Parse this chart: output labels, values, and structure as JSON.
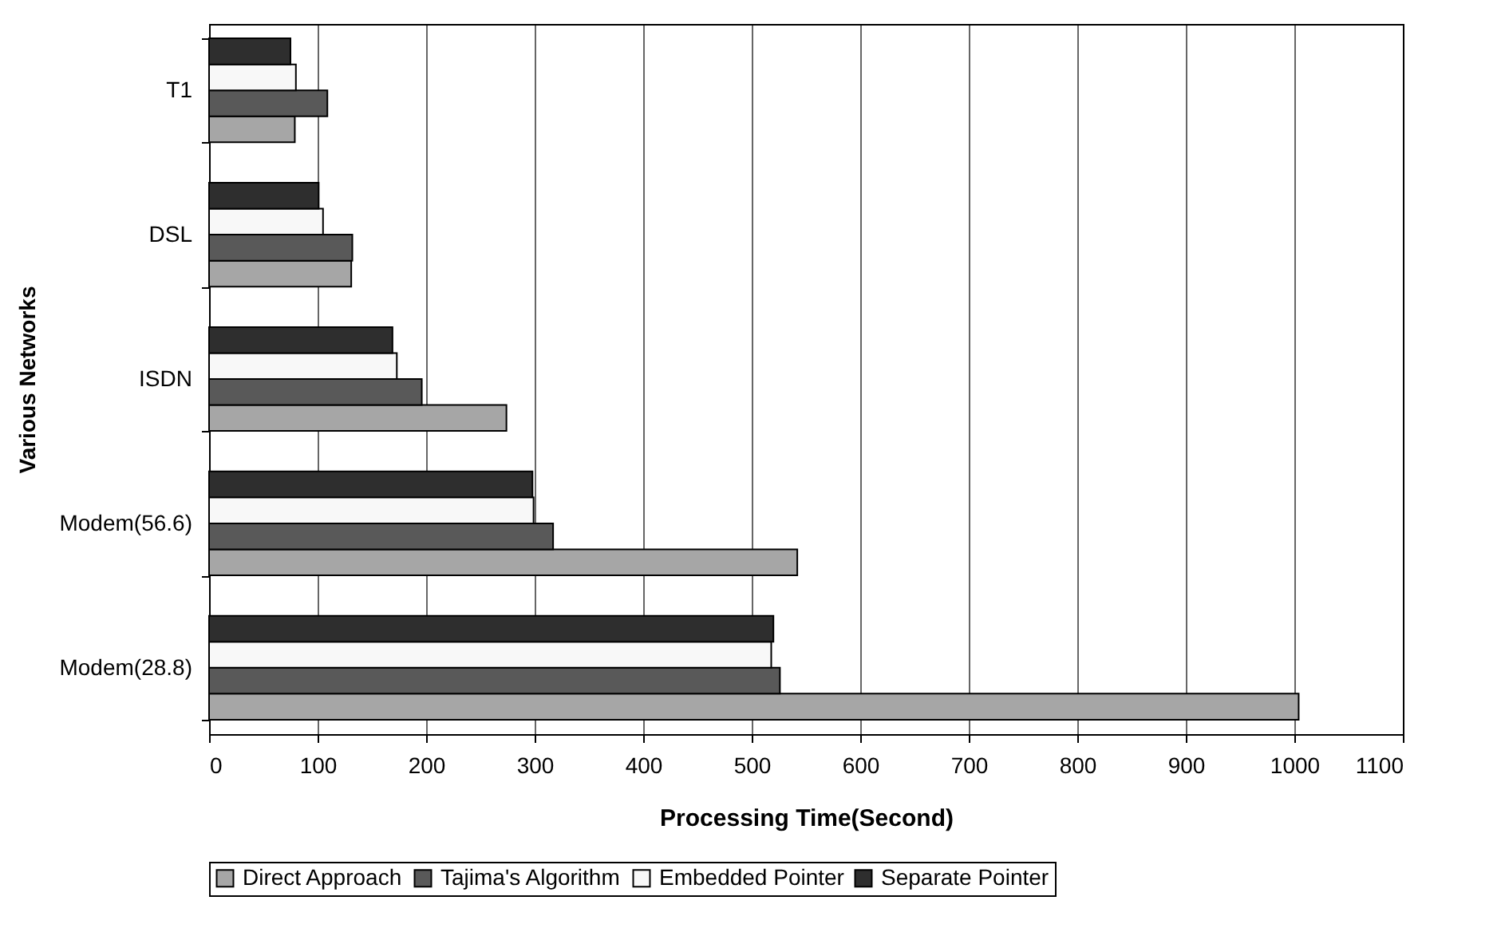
{
  "chart_data": {
    "type": "bar",
    "orientation": "horizontal",
    "xlabel": "Processing Time(Second)",
    "ylabel": "Various Networks",
    "categories": [
      "T1",
      "DSL",
      "ISDN",
      "Modem(56.6)",
      "Modem(28.8)"
    ],
    "series": [
      {
        "name": "Direct Approach",
        "color": "#a6a6a6",
        "values": [
          79,
          131,
          274,
          542,
          1004
        ]
      },
      {
        "name": "Tajima's Algorithm",
        "color": "#595959",
        "values": [
          109,
          132,
          196,
          317,
          526
        ]
      },
      {
        "name": "Embedded Pointer",
        "color": "#f8f8f8",
        "values": [
          80,
          105,
          173,
          299,
          518
        ]
      },
      {
        "name": "Separate Pointer",
        "color": "#2e2e2e",
        "values": [
          75,
          101,
          169,
          298,
          520
        ]
      }
    ],
    "xlim": [
      0,
      1100
    ],
    "xticks": [
      0,
      100,
      200,
      300,
      400,
      500,
      600,
      700,
      800,
      900,
      1000,
      1100
    ],
    "grid": "x",
    "legend": "bottom"
  }
}
